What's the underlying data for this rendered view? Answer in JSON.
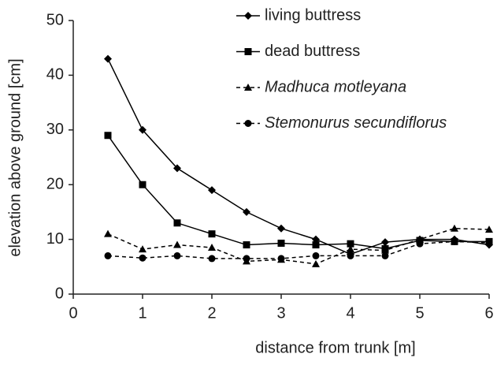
{
  "chart_data": {
    "type": "line",
    "x_label": "distance from trunk [m]",
    "y_label": "elevation above ground [cm]",
    "x": [
      0.5,
      1,
      1.5,
      2,
      2.5,
      3,
      3.5,
      4,
      4.5,
      5,
      5.5,
      6
    ],
    "series": [
      {
        "name": "living buttress",
        "color": "#000000",
        "marker": "diamond",
        "line_style": "solid",
        "italic": false,
        "values": [
          43,
          30,
          23,
          19,
          15,
          12,
          10,
          7.3,
          9.5,
          10,
          10,
          9
        ]
      },
      {
        "name": "dead buttress",
        "color": "#000000",
        "marker": "square",
        "line_style": "solid",
        "italic": false,
        "values": [
          29,
          20,
          13,
          11,
          9,
          9.3,
          9,
          9.2,
          8.3,
          9.8,
          9.6,
          9.6
        ]
      },
      {
        "name": "Madhuca motleyana",
        "color": "#000000",
        "marker": "triangle",
        "line_style": "dashed",
        "italic": true,
        "values": [
          11,
          8.2,
          9,
          8.5,
          6,
          6.3,
          5.5,
          8.2,
          8,
          10,
          12,
          11.8
        ]
      },
      {
        "name": "Stemonurus secundiflorus",
        "color": "#000000",
        "marker": "circle",
        "line_style": "dashed",
        "italic": true,
        "values": [
          7,
          6.6,
          7,
          6.5,
          6.5,
          6.5,
          7,
          7,
          7,
          9.2,
          9.6,
          9.4
        ]
      }
    ],
    "xlim": [
      0,
      6
    ],
    "xticks": [
      0,
      1,
      2,
      3,
      4,
      5,
      6
    ],
    "ylim": [
      0,
      50
    ],
    "yticks": [
      0,
      10,
      20,
      30,
      40,
      50
    ],
    "grid": false,
    "legend_position": "upper right"
  }
}
